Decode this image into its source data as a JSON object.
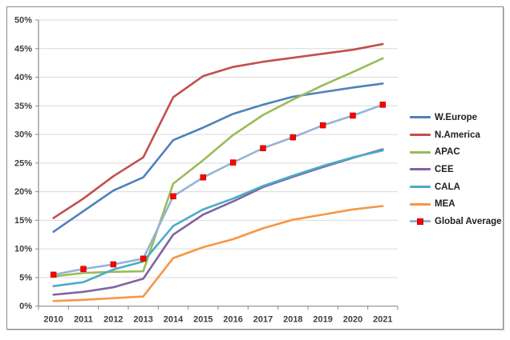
{
  "chart_data": {
    "type": "line",
    "title": "",
    "xlabel": "",
    "ylabel": "",
    "categories": [
      "2010",
      "2011",
      "2012",
      "2013",
      "2014",
      "2015",
      "2016",
      "2017",
      "2018",
      "2019",
      "2020",
      "2021"
    ],
    "ylim": [
      0,
      50
    ],
    "ytick_step": 5,
    "yticks": [
      "0%",
      "5%",
      "10%",
      "15%",
      "20%",
      "25%",
      "30%",
      "35%",
      "40%",
      "45%",
      "50%"
    ],
    "grid": true,
    "legend_position": "right",
    "colors": {
      "gridline": "#D9D9D9",
      "axis": "#8C8C8C",
      "tick_label": "#3F3F3F",
      "legend_text": "#1F1F1F",
      "marker": "#FF0000",
      "background": "#FFFFFF"
    },
    "series": [
      {
        "name": "W.Europe",
        "color": "#4F81BD",
        "values": [
          13,
          16.6,
          20.2,
          22.5,
          29,
          31.2,
          33.6,
          35.2,
          36.6,
          37.4,
          38.2,
          38.9
        ]
      },
      {
        "name": "N.America",
        "color": "#C0504D",
        "values": [
          15.4,
          18.8,
          22.7,
          26,
          36.5,
          40.2,
          41.8,
          42.7,
          43.4,
          44.1,
          44.8,
          45.8
        ]
      },
      {
        "name": "APAC",
        "color": "#9BBB59",
        "values": [
          5.2,
          5.8,
          6,
          6.1,
          21.4,
          25.5,
          29.9,
          33.4,
          36.1,
          38.6,
          40.9,
          43.3
        ]
      },
      {
        "name": "CEE",
        "color": "#8064A2",
        "values": [
          2,
          2.5,
          3.3,
          4.8,
          12.5,
          16,
          18.3,
          20.8,
          22.6,
          24.3,
          25.9,
          27.4
        ]
      },
      {
        "name": "CALA",
        "color": "#4BACC6",
        "values": [
          3.5,
          4.2,
          6.4,
          7.8,
          14,
          16.9,
          18.8,
          21,
          22.8,
          24.5,
          26,
          27.2
        ]
      },
      {
        "name": "MEA",
        "color": "#F79646",
        "values": [
          0.9,
          1.1,
          1.4,
          1.7,
          8.4,
          10.3,
          11.7,
          13.6,
          15.1,
          16,
          16.9,
          17.5
        ]
      },
      {
        "name": "Global Average",
        "color": "#95B3D7",
        "marker": {
          "shape": "square",
          "color": "#FF0000"
        },
        "values": [
          5.5,
          6.5,
          7.3,
          8.3,
          19.2,
          22.5,
          25.1,
          27.6,
          29.5,
          31.6,
          33.3,
          35.2
        ]
      }
    ]
  }
}
